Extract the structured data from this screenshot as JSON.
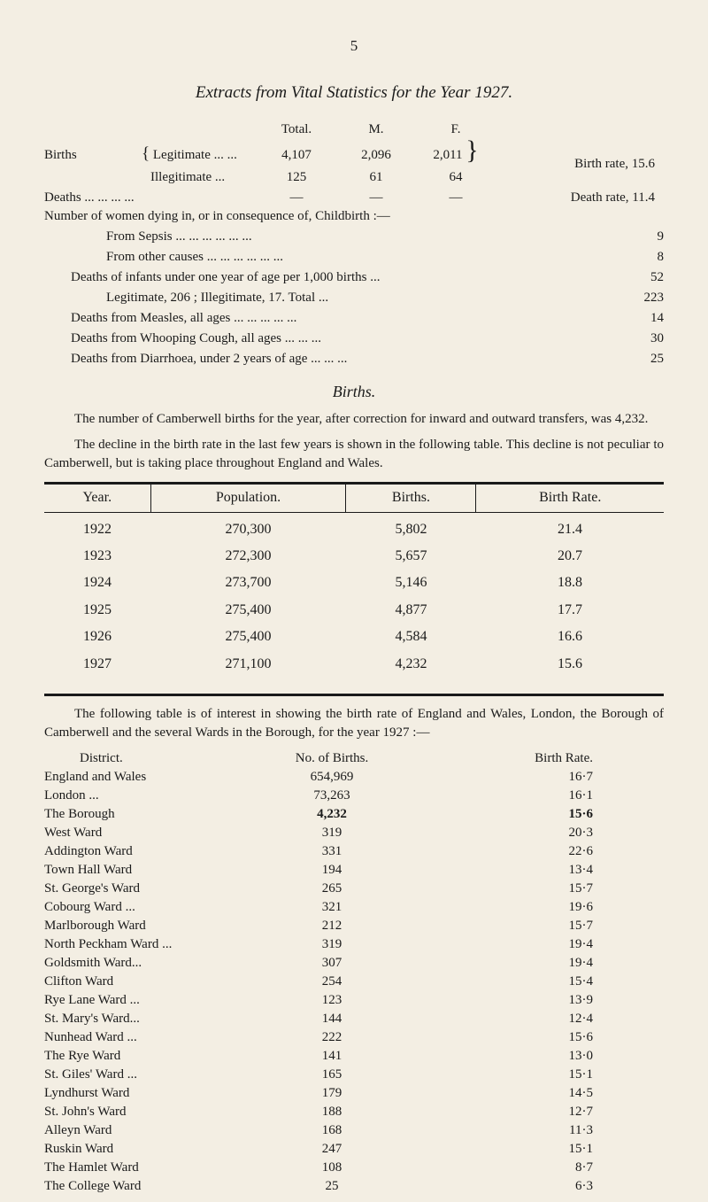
{
  "page_number": "5",
  "title": "Extracts from Vital Statistics for the Year 1927.",
  "top_stats": {
    "headers": [
      "Total.",
      "M.",
      "F."
    ],
    "births_label": "Births",
    "legitimate": {
      "label": "Legitimate ...    ...",
      "total": "4,107",
      "m": "2,096",
      "f": "2,011"
    },
    "illegitimate": {
      "label": "Illegitimate         ...",
      "total": "125",
      "m": "61",
      "f": "64"
    },
    "birth_rate_label": "Birth rate, 15.6",
    "deaths_label": "Deaths    ...       ...       ...    ...",
    "deaths_total": "—",
    "deaths_m": "—",
    "deaths_f": "—",
    "death_rate_label": "Death rate, 11.4"
  },
  "causes": [
    {
      "label": "Number of women dying in, or in consequence of, Childbirth :—",
      "value": ""
    },
    {
      "label": "From Sepsis            ...        ...       ...       ...       ...       ...",
      "value": "9",
      "indent": 2
    },
    {
      "label": "From other causes ...        ...       ...       ...       ...       ...",
      "value": "8",
      "indent": 2
    },
    {
      "label": "Deaths of infants under one year of age per 1,000 births       ...",
      "value": "52",
      "indent": 1
    },
    {
      "label": "Legitimate, 206 ;  Illegitimate, 17.                 Total     ...",
      "value": "223",
      "indent": 2
    },
    {
      "label": "Deaths from Measles, all ages       ...        ...        ...       ...       ...",
      "value": "14",
      "indent": 1
    },
    {
      "label": "Deaths from Whooping Cough, all ages        ...       ...       ...",
      "value": "30",
      "indent": 1
    },
    {
      "label": "Deaths from Diarrhoea, under 2 years of age ...       ...       ...",
      "value": "25",
      "indent": 1
    }
  ],
  "subheading": "Births.",
  "para1": "The number of Camberwell births for the year, after correction for inward and outward transfers, was 4,232.",
  "para2": "The decline in the birth rate in the last few years is shown in the following table. This decline is not peculiar to Camberwell, but is taking place throughout England and Wales.",
  "births_table": {
    "columns": [
      "Year.",
      "Population.",
      "Births.",
      "Birth Rate."
    ],
    "rows": [
      [
        "1922",
        "270,300",
        "5,802",
        "21.4"
      ],
      [
        "1923",
        "272,300",
        "5,657",
        "20.7"
      ],
      [
        "1924",
        "273,700",
        "5,146",
        "18.8"
      ],
      [
        "1925",
        "275,400",
        "4,877",
        "17.7"
      ],
      [
        "1926",
        "275,400",
        "4,584",
        "16.6"
      ],
      [
        "1927",
        "271,100",
        "4,232",
        "15.6"
      ]
    ]
  },
  "para3": "The following table is of interest in showing the birth rate of England and Wales, London, the Borough of Camberwell and the several Wards in the Borough, for the year 1927 :—",
  "district_table": {
    "header": {
      "name": "District.",
      "num": "No. of Births.",
      "rate": "Birth Rate."
    },
    "rows": [
      {
        "name": "England and Wales",
        "num": "654,969",
        "rate": "16·7"
      },
      {
        "name": "London   ...",
        "num": "73,263",
        "rate": "16·1"
      },
      {
        "name": "The Borough",
        "num": "4,232",
        "rate": "15·6",
        "bold": true
      },
      {
        "name": "West Ward",
        "num": "319",
        "rate": "20·3"
      },
      {
        "name": "Addington Ward",
        "num": "331",
        "rate": "22·6"
      },
      {
        "name": "Town Hall Ward",
        "num": "194",
        "rate": "13·4"
      },
      {
        "name": "St. George's Ward",
        "num": "265",
        "rate": "15·7"
      },
      {
        "name": "Cobourg Ward  ...",
        "num": "321",
        "rate": "19·6"
      },
      {
        "name": "Marlborough Ward",
        "num": "212",
        "rate": "15·7"
      },
      {
        "name": "North Peckham Ward ...",
        "num": "319",
        "rate": "19·4"
      },
      {
        "name": "Goldsmith Ward...",
        "num": "307",
        "rate": "19·4"
      },
      {
        "name": "Clifton Ward",
        "num": "254",
        "rate": "15·4"
      },
      {
        "name": "Rye Lane Ward ...",
        "num": "123",
        "rate": "13·9"
      },
      {
        "name": "St. Mary's Ward...",
        "num": "144",
        "rate": "12·4"
      },
      {
        "name": "Nunhead Ward ...",
        "num": "222",
        "rate": "15·6"
      },
      {
        "name": "The Rye Ward",
        "num": "141",
        "rate": "13·0"
      },
      {
        "name": "St. Giles' Ward ...",
        "num": "165",
        "rate": "15·1"
      },
      {
        "name": "Lyndhurst Ward",
        "num": "179",
        "rate": "14·5"
      },
      {
        "name": "St. John's Ward",
        "num": "188",
        "rate": "12·7"
      },
      {
        "name": "Alleyn Ward",
        "num": "168",
        "rate": "11·3"
      },
      {
        "name": "Ruskin Ward",
        "num": "247",
        "rate": "15·1"
      },
      {
        "name": "The Hamlet Ward",
        "num": "108",
        "rate": "8·7"
      },
      {
        "name": "The College Ward",
        "num": "25",
        "rate": "6·3"
      }
    ]
  }
}
